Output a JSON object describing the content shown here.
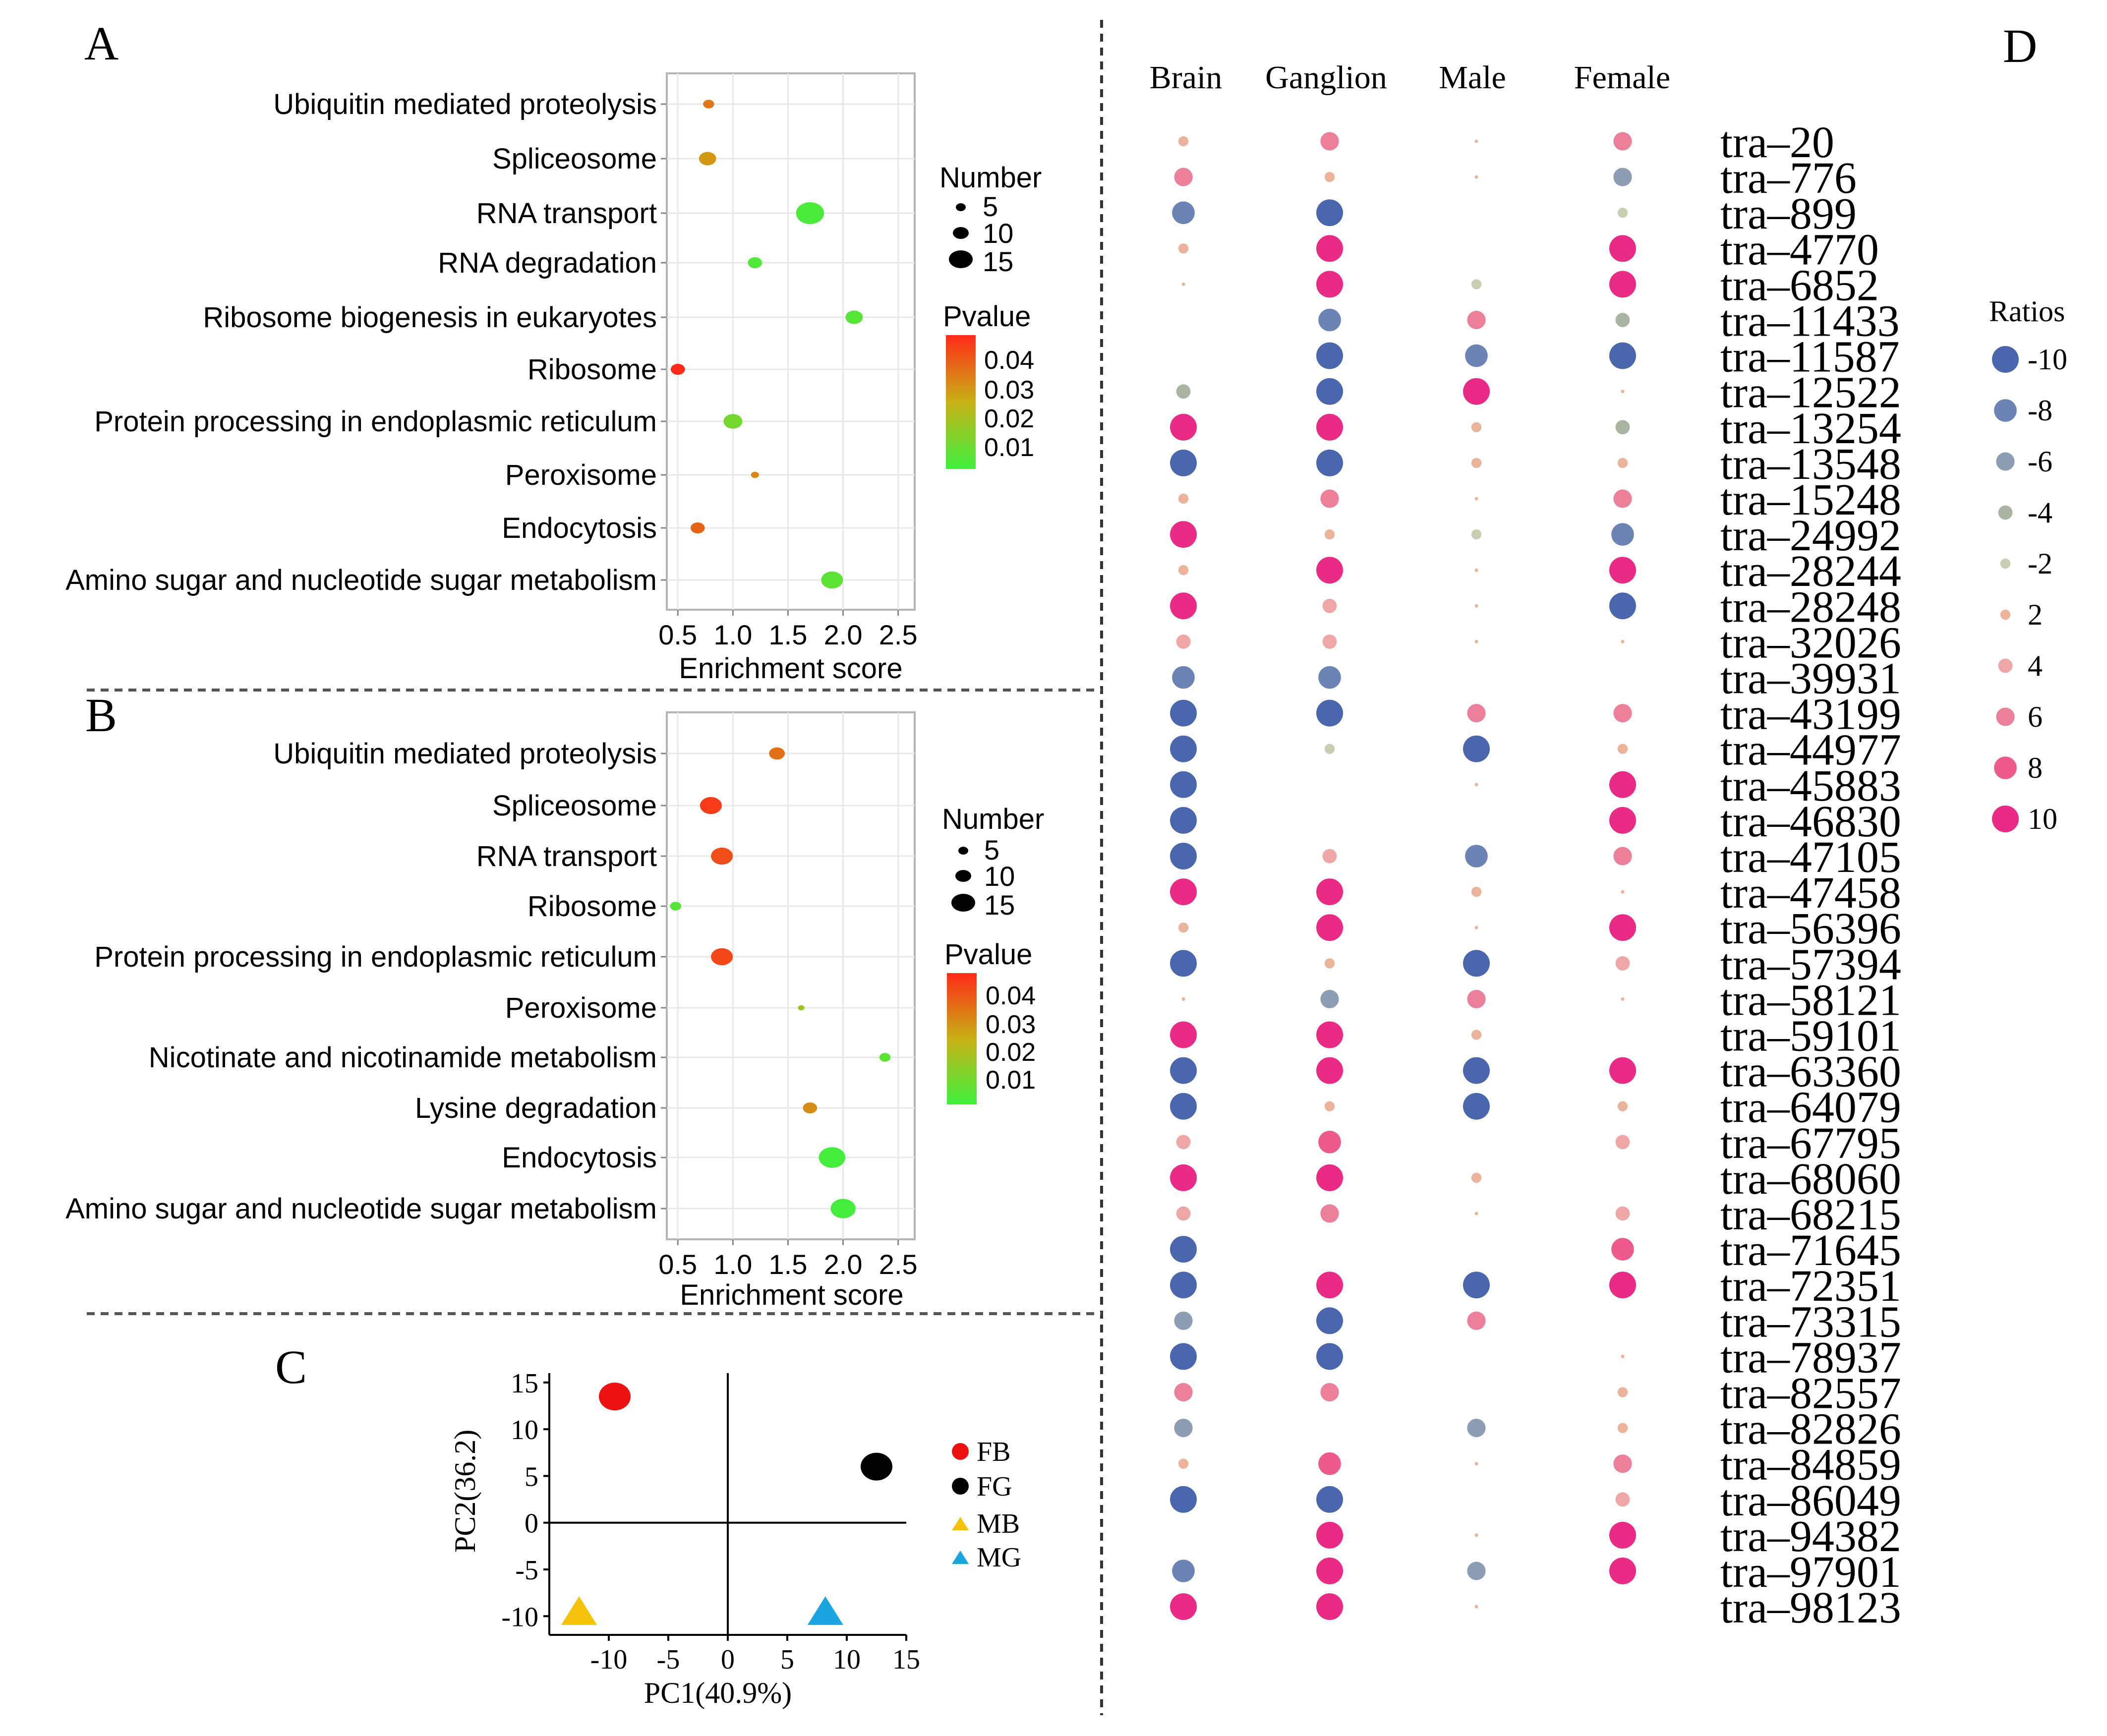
{
  "panels": {
    "a": "A",
    "b": "B",
    "c": "C",
    "d": "D"
  },
  "colors": {
    "pval_low": "#3ef03e",
    "pval_mid": "#c8b014",
    "pval_high": "#ff2a1a",
    "neg10": "#4a67ad",
    "neg8": "#6b84b4",
    "neg6": "#8d9db4",
    "neg4": "#a9b5a2",
    "neg2": "#c8cfb1",
    "pos2": "#ecb39b",
    "pos4": "#eea7a6",
    "pos6": "#ec809b",
    "pos8": "#ec5b8c",
    "pos10": "#ea2b86",
    "fb": "#ee1111",
    "fg": "#000000",
    "mb": "#f4c20a",
    "mg": "#1aa4e0"
  },
  "chart_data": [
    {
      "panel": "A",
      "type": "scatter",
      "title": "",
      "categories": [
        "Ubiquitin mediated proteolysis",
        "Spliceosome",
        "RNA transport",
        "RNA degradation",
        "Ribosome biogenesis in eukaryotes",
        "Ribosome",
        "Protein processing in endoplasmic reticulum",
        "Peroxisome",
        "Endocytosis",
        "Amino sugar and nucleotide sugar metabolism"
      ],
      "enrichment": [
        0.78,
        0.77,
        1.7,
        1.2,
        2.1,
        0.5,
        1.0,
        1.2,
        0.68,
        1.9
      ],
      "number": [
        4,
        8,
        15,
        6,
        8,
        6,
        9,
        2,
        6,
        11
      ],
      "pvalue": [
        0.035,
        0.029,
        0.004,
        0.005,
        0.006,
        0.048,
        0.011,
        0.032,
        0.038,
        0.007
      ],
      "xlabel": "Enrichment score",
      "xticks": [
        "0.5",
        "1.0",
        "1.5",
        "2.0",
        "2.5"
      ],
      "xlim": [
        0.4,
        2.65
      ],
      "size_legend": {
        "title": "Number",
        "values": [
          "5",
          "10",
          "15"
        ]
      },
      "color_legend": {
        "title": "Pvalue",
        "values": [
          "0.04",
          "0.03",
          "0.02",
          "0.01"
        ]
      }
    },
    {
      "panel": "B",
      "type": "scatter",
      "title": "",
      "categories": [
        "Ubiquitin mediated proteolysis",
        "Spliceosome",
        "RNA transport",
        "Ribosome",
        "Protein processing in endoplasmic reticulum",
        "Peroxisome",
        "Nicotinate and nicotinamide metabolism",
        "Lysine degradation",
        "Endocytosis",
        "Amino sugar and nucleotide sugar metabolism"
      ],
      "enrichment": [
        1.4,
        0.8,
        0.9,
        0.48,
        0.9,
        1.62,
        2.38,
        1.7,
        1.9,
        2.0
      ],
      "number": [
        7,
        11,
        11,
        4,
        11,
        1,
        4,
        6,
        14,
        13
      ],
      "pvalue": [
        0.036,
        0.045,
        0.042,
        0.006,
        0.043,
        0.018,
        0.007,
        0.031,
        0.003,
        0.003
      ],
      "xlabel": "Enrichment score",
      "xticks": [
        "0.5",
        "1.0",
        "1.5",
        "2.0",
        "2.5"
      ],
      "xlim": [
        0.4,
        2.65
      ],
      "size_legend": {
        "title": "Number",
        "values": [
          "5",
          "10",
          "15"
        ]
      },
      "color_legend": {
        "title": "Pvalue",
        "values": [
          "0.04",
          "0.03",
          "0.02",
          "0.01"
        ]
      }
    },
    {
      "panel": "C",
      "type": "scatter",
      "xlabel": "PC1(40.9%)",
      "ylabel": "PC2(36.2)",
      "xlim": [
        -15,
        15
      ],
      "ylim": [
        -12,
        16
      ],
      "xticks": [
        "-10",
        "-5",
        "0",
        "5",
        "10",
        "15"
      ],
      "yticks": [
        "15",
        "10",
        "5",
        "0",
        "-5",
        "-10"
      ],
      "points": [
        {
          "label": "FB",
          "x": -9.5,
          "y": 13.5,
          "shape": "circle",
          "color": "#ee1111"
        },
        {
          "label": "FG",
          "x": 12.5,
          "y": 6.0,
          "shape": "circle",
          "color": "#000000"
        },
        {
          "label": "MB",
          "x": -12.5,
          "y": -9.5,
          "shape": "triangle",
          "color": "#f4c20a"
        },
        {
          "label": "MG",
          "x": 8.2,
          "y": -9.5,
          "shape": "triangle",
          "color": "#1aa4e0"
        }
      ],
      "legend": [
        "FB",
        "FG",
        "MB",
        "MG"
      ]
    },
    {
      "panel": "D",
      "type": "heatmap",
      "columns": [
        "Brain",
        "Ganglion",
        "Male",
        "Female"
      ],
      "rows": [
        "tra–20",
        "tra–776",
        "tra–899",
        "tra–4770",
        "tra–6852",
        "tra–11433",
        "tra–11587",
        "tra–12522",
        "tra–13254",
        "tra–13548",
        "tra–15248",
        "tra–24992",
        "tra–28244",
        "tra–28248",
        "tra–32026",
        "tra–39931",
        "tra–43199",
        "tra–44977",
        "tra–45883",
        "tra–46830",
        "tra–47105",
        "tra–47458",
        "tra–56396",
        "tra–57394",
        "tra–58121",
        "tra–59101",
        "tra–63360",
        "tra–64079",
        "tra–67795",
        "tra–68060",
        "tra–68215",
        "tra–71645",
        "tra–72351",
        "tra–73315",
        "tra–78937",
        "tra–82557",
        "tra–82826",
        "tra–84859",
        "tra–86049",
        "tra–94382",
        "tra–97901",
        "tra–98123"
      ],
      "values": [
        [
          2,
          6,
          1,
          6
        ],
        [
          6,
          2,
          1,
          -6
        ],
        [
          -8,
          -10,
          0,
          -2
        ],
        [
          2,
          10,
          0,
          10
        ],
        [
          1,
          10,
          -2,
          10
        ],
        [
          0,
          -8,
          6,
          -4
        ],
        [
          0,
          -10,
          -8,
          -10
        ],
        [
          -4,
          -10,
          10,
          1
        ],
        [
          10,
          10,
          2,
          -4
        ],
        [
          -10,
          -10,
          2,
          2
        ],
        [
          2,
          6,
          1,
          6
        ],
        [
          10,
          2,
          -2,
          -8
        ],
        [
          2,
          10,
          1,
          10
        ],
        [
          10,
          4,
          1,
          -10
        ],
        [
          4,
          4,
          1,
          1
        ],
        [
          -8,
          -8,
          0,
          0
        ],
        [
          -10,
          -10,
          6,
          6
        ],
        [
          -10,
          -2,
          -10,
          2
        ],
        [
          -10,
          0,
          1,
          10
        ],
        [
          -10,
          0,
          0,
          10
        ],
        [
          -10,
          4,
          -8,
          6
        ],
        [
          10,
          10,
          2,
          1
        ],
        [
          2,
          10,
          1,
          10
        ],
        [
          -10,
          2,
          -10,
          4
        ],
        [
          1,
          -6,
          6,
          1
        ],
        [
          10,
          10,
          2,
          0
        ],
        [
          -10,
          10,
          -10,
          10
        ],
        [
          -10,
          2,
          -10,
          2
        ],
        [
          4,
          8,
          0,
          4
        ],
        [
          10,
          10,
          2,
          0
        ],
        [
          4,
          6,
          1,
          4
        ],
        [
          -10,
          0,
          0,
          8
        ],
        [
          -10,
          10,
          -10,
          10
        ],
        [
          -6,
          -10,
          6,
          0
        ],
        [
          -10,
          -10,
          0,
          1
        ],
        [
          6,
          6,
          0,
          2
        ],
        [
          -6,
          0,
          -6,
          2
        ],
        [
          2,
          8,
          1,
          6
        ],
        [
          -10,
          -10,
          0,
          4
        ],
        [
          0,
          10,
          1,
          10
        ],
        [
          -8,
          10,
          -6,
          10
        ],
        [
          10,
          10,
          1,
          0
        ]
      ],
      "legend_title": "Ratios",
      "legend_values": [
        "-10",
        "-8",
        "-6",
        "-4",
        "-2",
        "2",
        "4",
        "6",
        "8",
        "10"
      ]
    }
  ]
}
